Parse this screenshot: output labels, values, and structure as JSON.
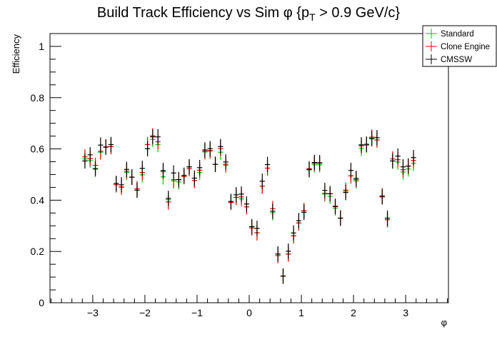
{
  "chart_data": {
    "type": "scatter",
    "title_main": "Build Track Efficiency vs Sim φ {p",
    "title_sub": "T",
    "title_tail": " > 0.9 GeV/c}",
    "xlabel": "φ",
    "ylabel": "Efficiency",
    "xlim": [
      -3.82,
      3.82
    ],
    "ylim": [
      0,
      1.05
    ],
    "x_ticks": [
      -3,
      -2,
      -1,
      0,
      1,
      2,
      3
    ],
    "x_tick_labels": [
      "−3",
      "−2",
      "−1",
      "0",
      "1",
      "2",
      "3"
    ],
    "y_ticks": [
      0,
      0.2,
      0.4,
      0.6,
      0.8,
      1
    ],
    "y_tick_labels": [
      "0",
      "0.2",
      "0.4",
      "0.6",
      "0.8",
      "1"
    ],
    "grid": false,
    "legend_position": "top-right",
    "bin_start": -3.2,
    "bin_width": 0.1,
    "typical_error": 0.03,
    "series": [
      {
        "name": "Standard",
        "color": "#00cc00",
        "values": [
          0.561,
          0.556,
          0.521,
          0.587,
          0.607,
          0.609,
          0.465,
          0.45,
          0.508,
          0.49,
          0.439,
          0.499,
          0.601,
          0.637,
          0.617,
          0.491,
          0.402,
          0.475,
          0.471,
          0.492,
          0.53,
          0.477,
          0.508,
          0.588,
          0.591,
          0.54,
          0.587,
          0.536,
          0.395,
          0.411,
          0.405,
          0.374,
          0.292,
          0.273,
          0.455,
          0.525,
          0.351,
          0.19,
          0.104,
          0.19,
          0.261,
          0.311,
          0.359,
          0.518,
          0.538,
          0.538,
          0.424,
          0.415,
          0.369,
          0.33,
          0.44,
          0.495,
          0.475,
          0.602,
          0.614,
          0.642,
          0.635,
          0.417,
          0.324,
          0.553,
          0.549,
          0.51,
          0.522,
          0.544
        ]
      },
      {
        "name": "Clone Engine",
        "color": "#ff0000",
        "values": [
          0.569,
          0.563,
          0.536,
          0.591,
          0.608,
          0.609,
          0.46,
          0.452,
          0.513,
          0.49,
          0.445,
          0.508,
          0.617,
          0.651,
          0.628,
          0.511,
          0.393,
          0.48,
          0.48,
          0.492,
          0.523,
          0.477,
          0.517,
          0.591,
          0.594,
          0.54,
          0.601,
          0.54,
          0.391,
          0.411,
          0.413,
          0.374,
          0.292,
          0.273,
          0.455,
          0.525,
          0.367,
          0.184,
          0.104,
          0.19,
          0.261,
          0.311,
          0.359,
          0.523,
          0.544,
          0.544,
          0.427,
          0.425,
          0.377,
          0.33,
          0.436,
          0.495,
          0.48,
          0.612,
          0.618,
          0.646,
          0.635,
          0.417,
          0.324,
          0.561,
          0.558,
          0.519,
          0.533,
          0.555
        ]
      },
      {
        "name": "CMSSW",
        "color": "#000000",
        "values": [
          0.553,
          0.577,
          0.523,
          0.615,
          0.607,
          0.617,
          0.465,
          0.46,
          0.52,
          0.49,
          0.439,
          0.524,
          0.601,
          0.647,
          0.647,
          0.516,
          0.407,
          0.506,
          0.48,
          0.497,
          0.53,
          0.486,
          0.527,
          0.596,
          0.601,
          0.54,
          0.609,
          0.549,
          0.395,
          0.421,
          0.424,
          0.385,
          0.297,
          0.29,
          0.474,
          0.539,
          0.357,
          0.19,
          0.104,
          0.201,
          0.272,
          0.32,
          0.353,
          0.52,
          0.547,
          0.546,
          0.438,
          0.425,
          0.375,
          0.33,
          0.43,
          0.516,
          0.485,
          0.616,
          0.618,
          0.64,
          0.644,
          0.413,
          0.33,
          0.553,
          0.572,
          0.53,
          0.533,
          0.566
        ]
      }
    ]
  }
}
